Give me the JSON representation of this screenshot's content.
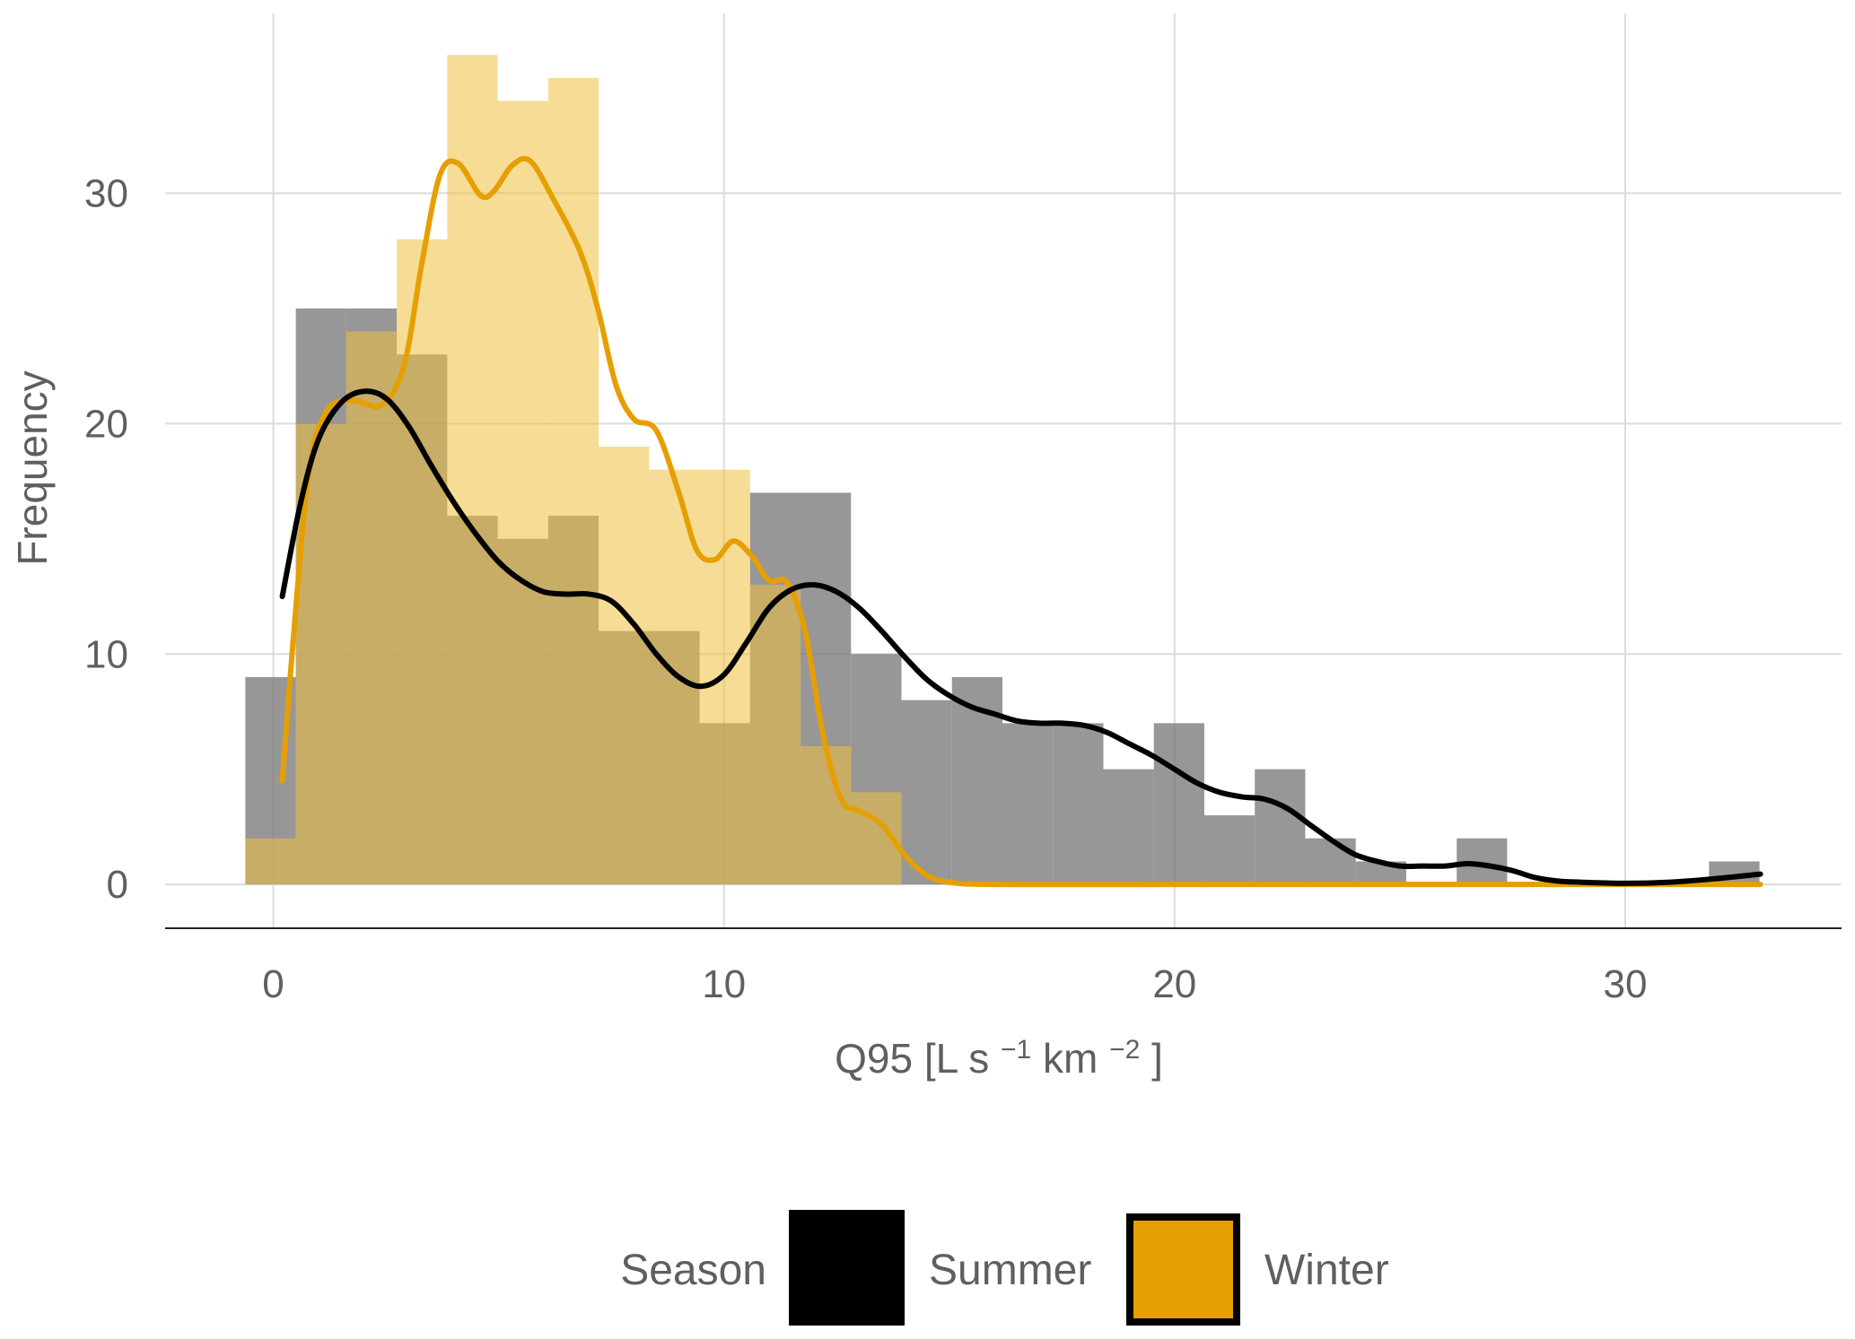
{
  "chart_data": {
    "type": "bar",
    "xlabel": "Q95",
    "xlabel_units": {
      "open": "[L s",
      "exp1": "−1",
      "mid": " km",
      "exp2": "−2",
      "close": "]"
    },
    "ylabel": "Frequency",
    "xlim": [
      -2.4,
      34.8
    ],
    "ylim": [
      -1.9,
      37.8
    ],
    "x_ticks": [
      0,
      10,
      20,
      30
    ],
    "y_ticks": [
      0,
      10,
      20,
      30
    ],
    "grid": true,
    "legend_position": "bottom",
    "bin_width": 1.12,
    "bin_start": -0.62,
    "series": [
      {
        "name": "Summer",
        "color": "#000000",
        "bar_color": "#7a7a7a",
        "bar_opacity": 0.78,
        "counts": [
          9,
          25,
          25,
          23,
          16,
          15,
          16,
          11,
          11,
          7,
          17,
          17,
          10,
          8,
          9,
          7,
          7,
          5,
          7,
          3,
          5,
          2,
          1,
          0,
          2,
          0,
          0,
          0,
          0,
          1
        ],
        "density_curve": [
          [
            0.2,
            12.5
          ],
          [
            0.6,
            16.5
          ],
          [
            1.0,
            19.3
          ],
          [
            1.5,
            20.9
          ],
          [
            2.0,
            21.4
          ],
          [
            2.5,
            21.1
          ],
          [
            3.0,
            19.9
          ],
          [
            3.5,
            18.2
          ],
          [
            4.0,
            16.6
          ],
          [
            4.5,
            15.2
          ],
          [
            5.0,
            14.0
          ],
          [
            5.5,
            13.2
          ],
          [
            6.0,
            12.7
          ],
          [
            6.5,
            12.6
          ],
          [
            7.0,
            12.6
          ],
          [
            7.5,
            12.3
          ],
          [
            8.0,
            11.3
          ],
          [
            8.5,
            10.0
          ],
          [
            9.0,
            9.0
          ],
          [
            9.5,
            8.6
          ],
          [
            10.0,
            9.1
          ],
          [
            10.5,
            10.5
          ],
          [
            11.0,
            12.0
          ],
          [
            11.5,
            12.8
          ],
          [
            12.0,
            13.0
          ],
          [
            12.5,
            12.7
          ],
          [
            13.0,
            12.0
          ],
          [
            13.5,
            11.0
          ],
          [
            14.0,
            9.9
          ],
          [
            14.5,
            8.9
          ],
          [
            15.0,
            8.2
          ],
          [
            15.5,
            7.7
          ],
          [
            16.0,
            7.4
          ],
          [
            16.5,
            7.1
          ],
          [
            17.0,
            7.0
          ],
          [
            17.5,
            7.0
          ],
          [
            18.0,
            6.9
          ],
          [
            18.5,
            6.6
          ],
          [
            19.0,
            6.1
          ],
          [
            19.5,
            5.6
          ],
          [
            20.0,
            5.0
          ],
          [
            20.5,
            4.4
          ],
          [
            21.0,
            4.0
          ],
          [
            21.5,
            3.8
          ],
          [
            22.0,
            3.7
          ],
          [
            22.5,
            3.3
          ],
          [
            23.0,
            2.6
          ],
          [
            23.5,
            1.9
          ],
          [
            24.0,
            1.3
          ],
          [
            24.5,
            1.0
          ],
          [
            25.0,
            0.8
          ],
          [
            25.5,
            0.8
          ],
          [
            26.0,
            0.8
          ],
          [
            26.5,
            0.9
          ],
          [
            27.0,
            0.8
          ],
          [
            27.5,
            0.6
          ],
          [
            28.0,
            0.3
          ],
          [
            28.5,
            0.15
          ],
          [
            29.0,
            0.1
          ],
          [
            30.0,
            0.05
          ],
          [
            31.0,
            0.1
          ],
          [
            32.0,
            0.25
          ],
          [
            33.0,
            0.45
          ]
        ]
      },
      {
        "name": "Winter",
        "color": "#e69f00",
        "bar_color": "#f0c040",
        "bar_opacity": 0.55,
        "counts": [
          2,
          20,
          24,
          28,
          36,
          34,
          35,
          19,
          18,
          18,
          13,
          6,
          4,
          0,
          0,
          0,
          0,
          0,
          0,
          0,
          0,
          0,
          0,
          0,
          0,
          0,
          0,
          0,
          0,
          0
        ],
        "density_curve": [
          [
            0.2,
            4.5
          ],
          [
            0.5,
            12.0
          ],
          [
            0.8,
            18.0
          ],
          [
            1.2,
            20.6
          ],
          [
            1.8,
            21.0
          ],
          [
            2.4,
            20.8
          ],
          [
            2.9,
            22.5
          ],
          [
            3.3,
            27.0
          ],
          [
            3.7,
            30.8
          ],
          [
            4.1,
            31.3
          ],
          [
            4.6,
            29.9
          ],
          [
            4.9,
            30.1
          ],
          [
            5.3,
            31.2
          ],
          [
            5.7,
            31.4
          ],
          [
            6.2,
            29.8
          ],
          [
            6.8,
            27.5
          ],
          [
            7.2,
            25.0
          ],
          [
            7.6,
            21.7
          ],
          [
            8.0,
            20.2
          ],
          [
            8.5,
            19.7
          ],
          [
            9.0,
            17.0
          ],
          [
            9.4,
            14.5
          ],
          [
            9.8,
            14.1
          ],
          [
            10.2,
            14.9
          ],
          [
            10.6,
            14.3
          ],
          [
            11.0,
            13.2
          ],
          [
            11.4,
            13.1
          ],
          [
            11.8,
            11.0
          ],
          [
            12.2,
            6.5
          ],
          [
            12.6,
            3.7
          ],
          [
            13.0,
            3.2
          ],
          [
            13.5,
            2.6
          ],
          [
            14.0,
            1.3
          ],
          [
            14.5,
            0.4
          ],
          [
            15.0,
            0.1
          ],
          [
            16.0,
            0
          ],
          [
            20.0,
            0
          ],
          [
            25.0,
            0
          ],
          [
            30.0,
            0
          ],
          [
            33.0,
            0
          ]
        ]
      }
    ],
    "legend": {
      "title": "Season",
      "entries": [
        {
          "label": "Summer",
          "fill": "#000000",
          "stroke": "#000000"
        },
        {
          "label": "Winter",
          "fill": "#e69f00",
          "stroke": "#000000"
        }
      ]
    }
  }
}
